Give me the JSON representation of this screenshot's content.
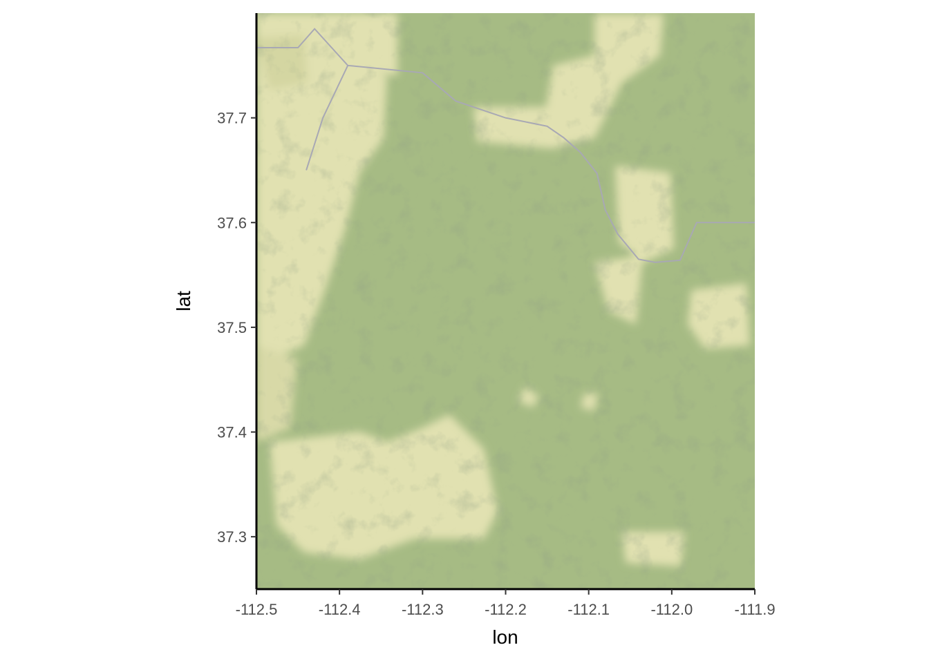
{
  "map": {
    "basemap": "terrain",
    "colors": {
      "lowland": "#e3e3b3",
      "upland": "#9fb57d",
      "shadow": "#4b5a3c",
      "road": "#a8a8b4"
    },
    "xlim": [
      -112.5,
      -111.9
    ],
    "ylim": [
      37.25,
      37.8
    ],
    "road_path": [
      [
        -112.5,
        37.767
      ],
      [
        -112.45,
        37.767
      ],
      [
        -112.43,
        37.785
      ],
      [
        -112.39,
        37.75
      ],
      [
        -112.3,
        37.743
      ],
      [
        -112.26,
        37.716
      ],
      [
        -112.2,
        37.7
      ],
      [
        -112.15,
        37.692
      ],
      [
        -112.13,
        37.681
      ],
      [
        -112.11,
        37.667
      ],
      [
        -112.09,
        37.647
      ],
      [
        -112.08,
        37.612
      ],
      [
        -112.065,
        37.589
      ],
      [
        -112.04,
        37.565
      ],
      [
        -112.02,
        37.562
      ],
      [
        -111.99,
        37.564
      ],
      [
        -111.97,
        37.6
      ],
      [
        -111.95,
        37.6
      ],
      [
        -111.9,
        37.6
      ]
    ],
    "road_branch": [
      [
        -112.39,
        37.75
      ],
      [
        -112.42,
        37.7
      ],
      [
        -112.44,
        37.65
      ]
    ]
  },
  "axes": {
    "xlabel": "lon",
    "ylabel": "lat",
    "xticks": [
      -112.5,
      -112.4,
      -112.3,
      -112.2,
      -112.1,
      -112.0,
      -111.9
    ],
    "xtick_labels": [
      "-112.5",
      "-112.4",
      "-112.3",
      "-112.2",
      "-112.1",
      "-112.0",
      "-111.9"
    ],
    "yticks": [
      37.3,
      37.4,
      37.5,
      37.6,
      37.7
    ],
    "ytick_labels": [
      "37.3",
      "37.4",
      "37.5",
      "37.6",
      "37.7"
    ]
  }
}
